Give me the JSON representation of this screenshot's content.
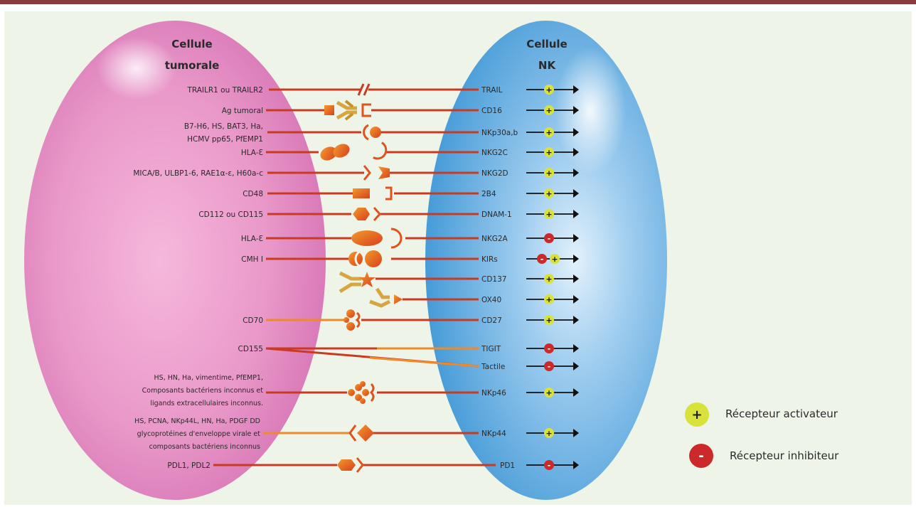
{
  "cells": {
    "tumor": [
      "Cellule",
      "tumorale"
    ],
    "nk": [
      "Cellule",
      "NK"
    ]
  },
  "rows": [
    {
      "ligand": "TRAILR1 ou TRAILR2",
      "receptor": "TRAIL",
      "signs": [
        "+"
      ]
    },
    {
      "ligand": "Ag tumoral",
      "receptor": "CD16",
      "signs": [
        "+"
      ]
    },
    {
      "ligand_lines": [
        "B7-H6, HS, BAT3, Ha,",
        "HCMV pp65, PfEMP1"
      ],
      "receptor": "NKp30a,b",
      "signs": [
        "+"
      ]
    },
    {
      "ligand": "HLA-Ɛ",
      "receptor": "NKG2C",
      "signs": [
        "+"
      ]
    },
    {
      "ligand": "MICA/B, ULBP1-6, RAE1α-ε, H60a-c",
      "receptor": "NKG2D",
      "signs": [
        "+"
      ]
    },
    {
      "ligand": "CD48",
      "receptor": "2B4",
      "signs": [
        "+"
      ]
    },
    {
      "ligand": "CD112 ou CD115",
      "receptor": "DNAM-1",
      "signs": [
        "+"
      ]
    },
    {
      "ligand": "HLA-Ɛ",
      "receptor": "NKG2A",
      "signs": [
        "-"
      ]
    },
    {
      "ligand": "CMH I",
      "receptor": "KIRs",
      "signs": [
        "-",
        "+"
      ]
    },
    {
      "ligand": "",
      "receptor": "CD137",
      "signs": [
        "+"
      ]
    },
    {
      "ligand": "",
      "receptor": "OX40",
      "signs": [
        "+"
      ]
    },
    {
      "ligand": "CD70",
      "receptor": "CD27",
      "signs": [
        "+"
      ]
    },
    {
      "ligand": "CD155",
      "receptor": "TIGIT",
      "signs": [
        "-"
      ]
    },
    {
      "ligand": "",
      "receptor": "Tactile",
      "signs": [
        "-"
      ]
    },
    {
      "ligand_lines": [
        "HS, HN, Ha, vimentime, PfEMP1,",
        "Composants bactériens inconnus et",
        "ligands extracellulaires inconnus."
      ],
      "receptor": "NKp46",
      "signs": [
        "+"
      ]
    },
    {
      "ligand_lines": [
        "HS, PCNA, NKp44L, HN, Ha, PDGF DD",
        "glycoprotéines d'enveloppe virale et",
        "composants bactériens inconnus"
      ],
      "receptor": "NKp44",
      "signs": [
        "+"
      ]
    },
    {
      "ligand": "PDL1, PDL2",
      "receptor": "PD1",
      "signs": [
        "-"
      ]
    }
  ],
  "legend": {
    "activator": {
      "sign": "+",
      "label": "Récepteur activateur"
    },
    "inhibitor": {
      "sign": "-",
      "label": "Récepteur inhibiteur"
    }
  },
  "colors": {
    "top_bar": "#8b3a3e",
    "background": "#eef5e8",
    "tumor_cell": "#e58ac2",
    "nk_cell": "#4fa3dc",
    "line": "#c83a22",
    "line_orange": "#ee8a2a",
    "shape": "#e0521e",
    "shape_light": "#f08a2a",
    "antibody": "#d8a640",
    "activator": "#d8e23a",
    "inhibitor": "#cc2a2a"
  }
}
